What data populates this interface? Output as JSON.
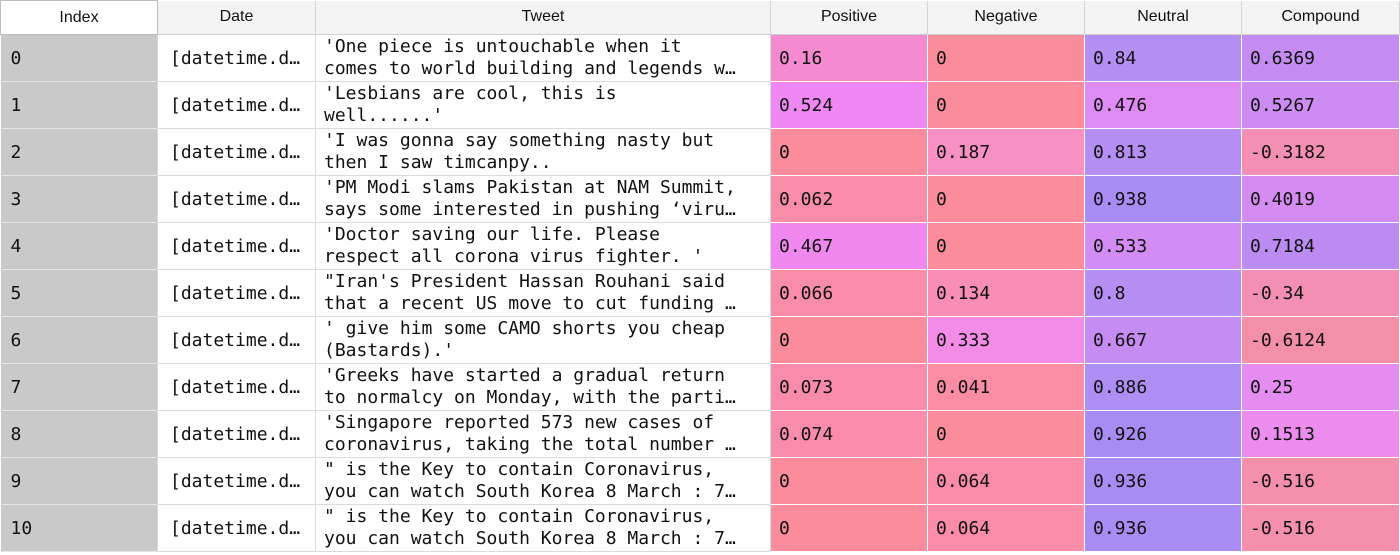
{
  "columns": [
    "Index",
    "Date",
    "Tweet",
    "Positive",
    "Negative",
    "Neutral",
    "Compound"
  ],
  "colors": {
    "zero_pink": "#fa8c9b",
    "positive_scale": [
      "#fa8c9b",
      "#f58ad7",
      "#ef88f0"
    ],
    "neutral_scale": [
      "#d58cf3",
      "#b08ef3",
      "#a88cf3"
    ],
    "compound_neg": "#f48fb0",
    "compound_pos": [
      "#e58cf1",
      "#b98cf3"
    ]
  },
  "rows": [
    {
      "index": "0",
      "date": "[datetime.d…",
      "tweet_line1": "'One piece is untouchable when it",
      "tweet_line2": "comes to world building and legends w…",
      "positive": "0.16",
      "negative": "0",
      "neutral": "0.84",
      "compound": "0.6369",
      "positive_color": "#f58ad1",
      "negative_color": "#fa8c9b",
      "neutral_color": "#b38ef3",
      "compound_color": "#c48cf2"
    },
    {
      "index": "1",
      "date": "[datetime.d…",
      "tweet_line1": "'Lesbians are cool, this is",
      "tweet_line2": "well......'",
      "positive": "0.524",
      "negative": "0",
      "neutral": "0.476",
      "compound": "0.5267",
      "positive_color": "#ef88f3",
      "negative_color": "#fa8c9b",
      "neutral_color": "#de8cf4",
      "compound_color": "#cc8cf2"
    },
    {
      "index": "2",
      "date": "[datetime.d…",
      "tweet_line1": "'I was gonna say something nasty but",
      "tweet_line2": "then I saw timcanpy..",
      "positive": "0",
      "negative": "0.187",
      "neutral": "0.813",
      "compound": "-0.3182",
      "positive_color": "#fa8c9b",
      "negative_color": "#f890c4",
      "neutral_color": "#b58ef3",
      "compound_color": "#f48fb4"
    },
    {
      "index": "3",
      "date": "[datetime.d…",
      "tweet_line1": "'PM Modi slams Pakistan at NAM Summit,",
      "tweet_line2": "says some interested in pushing ‘viru…",
      "positive": "0.062",
      "negative": "0",
      "neutral": "0.938",
      "compound": "0.4019",
      "positive_color": "#f98ca8",
      "negative_color": "#fa8c9b",
      "neutral_color": "#a98cf3",
      "compound_color": "#d58cf2"
    },
    {
      "index": "4",
      "date": "[datetime.d…",
      "tweet_line1": "'Doctor saving our life. Please",
      "tweet_line2": "respect all corona virus fighter. '",
      "positive": "0.467",
      "negative": "0",
      "neutral": "0.533",
      "compound": "0.7184",
      "positive_color": "#f088f0",
      "negative_color": "#fa8c9b",
      "neutral_color": "#d38cf4",
      "compound_color": "#bc8cf3"
    },
    {
      "index": "5",
      "date": "[datetime.d…",
      "tweet_line1": "\"Iran's President Hassan Rouhani said",
      "tweet_line2": "that a recent US move to cut funding …",
      "positive": "0.066",
      "negative": "0.134",
      "neutral": "0.8",
      "compound": "-0.34",
      "positive_color": "#f98ca8",
      "negative_color": "#f98eb5",
      "neutral_color": "#b78ef3",
      "compound_color": "#f48fb4"
    },
    {
      "index": "6",
      "date": "[datetime.d…",
      "tweet_line1": "' give him some CAMO shorts you cheap",
      "tweet_line2": "(Bastards).'",
      "positive": "0",
      "negative": "0.333",
      "neutral": "0.667",
      "compound": "-0.6124",
      "positive_color": "#fa8c9b",
      "negative_color": "#f38ce6",
      "neutral_color": "#c58cf3",
      "compound_color": "#f48fa8"
    },
    {
      "index": "7",
      "date": "[datetime.d…",
      "tweet_line1": "'Greeks have started a gradual return",
      "tweet_line2": "to normalcy on Monday, with the parti…",
      "positive": "0.073",
      "negative": "0.041",
      "neutral": "0.886",
      "compound": "0.25",
      "positive_color": "#f98caa",
      "negative_color": "#fa8ca4",
      "neutral_color": "#ad8ef3",
      "compound_color": "#e58cf1"
    },
    {
      "index": "8",
      "date": "[datetime.d…",
      "tweet_line1": "'Singapore reported 573 new cases of",
      "tweet_line2": "coronavirus, taking the total number …",
      "positive": "0.074",
      "negative": "0",
      "neutral": "0.926",
      "compound": "0.1513",
      "positive_color": "#f98caa",
      "negative_color": "#fa8c9b",
      "neutral_color": "#a98cf3",
      "compound_color": "#ec8cef"
    },
    {
      "index": "9",
      "date": "[datetime.d…",
      "tweet_line1": "\" is the Key to contain Coronavirus,",
      "tweet_line2": "you can watch South Korea 8 March : 7…",
      "positive": "0",
      "negative": "0.064",
      "neutral": "0.936",
      "compound": "-0.516",
      "positive_color": "#fa8c9b",
      "negative_color": "#fa8ca7",
      "neutral_color": "#a98cf3",
      "compound_color": "#f48fac"
    },
    {
      "index": "10",
      "date": "[datetime.d…",
      "tweet_line1": "\" is the Key to contain Coronavirus,",
      "tweet_line2": "you can watch South Korea 8 March : 7…",
      "positive": "0",
      "negative": "0.064",
      "neutral": "0.936",
      "compound": "-0.516",
      "positive_color": "#fa8c9b",
      "negative_color": "#fa8ca7",
      "neutral_color": "#a98cf3",
      "compound_color": "#f48fac"
    }
  ]
}
